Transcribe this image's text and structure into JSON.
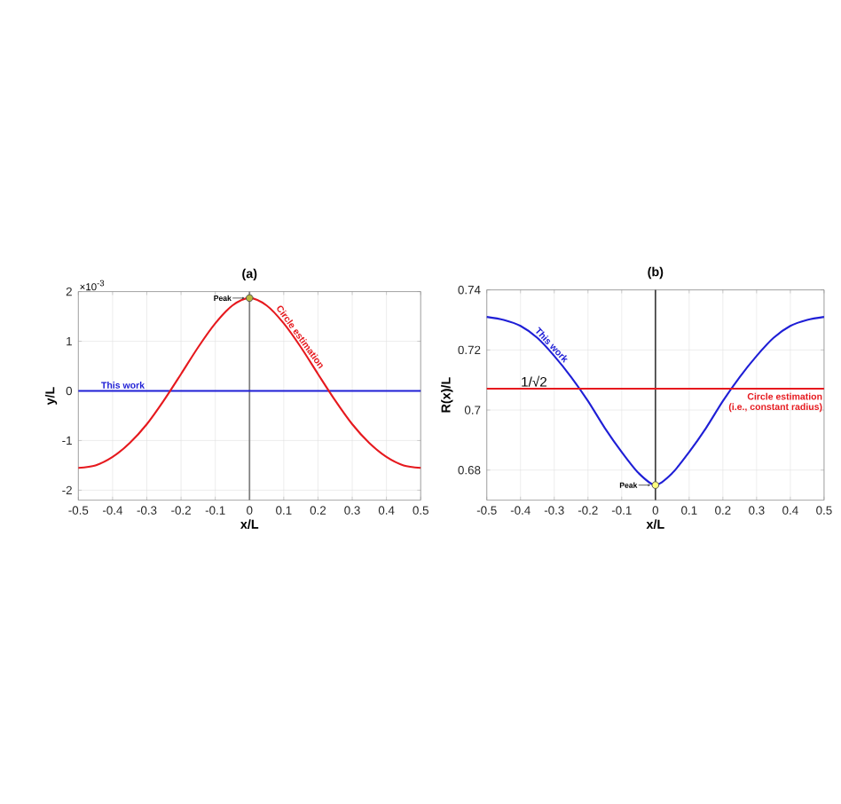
{
  "chart_data": [
    {
      "type": "line",
      "title": "(a)",
      "xlabel": "x/L",
      "ylabel": "y/L",
      "xlim": [
        -0.5,
        0.5
      ],
      "xticks": [
        -0.5,
        -0.4,
        -0.3,
        -0.2,
        -0.1,
        0,
        0.1,
        0.2,
        0.3,
        0.4,
        0.5
      ],
      "ylim": [
        -2.2,
        2
      ],
      "yticks": [
        -2,
        -1,
        0,
        1,
        2
      ],
      "grid": true,
      "series": [
        {
          "name": "This work",
          "color": "#1f1fd6",
          "x": [
            -0.5,
            0.5
          ],
          "values": [
            0,
            0
          ]
        },
        {
          "name": "Circle estimation",
          "color": "#e6191e",
          "x": [
            -0.5,
            -0.45,
            -0.4,
            -0.35,
            -0.3,
            -0.25,
            -0.2,
            -0.15,
            -0.1,
            -0.05,
            0,
            0.05,
            0.1,
            0.15,
            0.2,
            0.25,
            0.3,
            0.35,
            0.4,
            0.45,
            0.5
          ],
          "values": [
            -1.55,
            -1.5,
            -1.33,
            -1.05,
            -0.67,
            -0.19,
            0.34,
            0.88,
            1.36,
            1.72,
            1.87,
            1.72,
            1.36,
            0.88,
            0.34,
            -0.19,
            -0.67,
            -1.05,
            -1.33,
            -1.5,
            -1.55
          ]
        },
        {
          "type": "scatter",
          "color": "#b8b840",
          "marker": "circle",
          "x": [
            0
          ],
          "values": [
            1.87
          ]
        }
      ],
      "ref_lines": [
        {
          "axis": "x",
          "value": 0,
          "color": "#7f7f7f"
        }
      ],
      "annotations": [
        "×10$^{-3}$",
        "Peak"
      ]
    },
    {
      "type": "line",
      "title": "(b)",
      "xlabel": "x/L",
      "ylabel": "R(x)/L",
      "xlim": [
        -0.5,
        0.5
      ],
      "xticks": [
        -0.5,
        -0.4,
        -0.3,
        -0.2,
        -0.1,
        0,
        0.1,
        0.2,
        0.3,
        0.4,
        0.5
      ],
      "ylim": [
        0.67,
        0.74
      ],
      "yticks": [
        0.68,
        0.7,
        0.72,
        0.74
      ],
      "grid": true,
      "series": [
        {
          "name": "This work",
          "color": "#1f1fd6",
          "x": [
            -0.5,
            -0.45,
            -0.4,
            -0.35,
            -0.3,
            -0.25,
            -0.2,
            -0.15,
            -0.1,
            -0.05,
            0,
            0.05,
            0.1,
            0.15,
            0.2,
            0.25,
            0.3,
            0.35,
            0.4,
            0.45,
            0.5
          ],
          "values": [
            0.731,
            0.73,
            0.728,
            0.724,
            0.718,
            0.711,
            0.703,
            0.694,
            0.686,
            0.679,
            0.675,
            0.679,
            0.686,
            0.694,
            0.703,
            0.711,
            0.718,
            0.724,
            0.728,
            0.73,
            0.731
          ]
        },
        {
          "name": "Circle estimation",
          "color": "#e6191e",
          "x": [
            -0.5,
            0.5
          ],
          "values": [
            0.7071,
            0.7071
          ]
        },
        {
          "type": "scatter",
          "color": "#ffff80",
          "marker": "circle",
          "x": [
            0
          ],
          "values": [
            0.675
          ]
        }
      ],
      "ref_lines": [
        {
          "axis": "x",
          "value": 0,
          "color": "#404040"
        }
      ],
      "annotations": [
        {
          "text": "1/√2",
          "x": -0.36,
          "y": 0.7071
        },
        "(i.e., constant radius)",
        "Peak"
      ]
    }
  ]
}
